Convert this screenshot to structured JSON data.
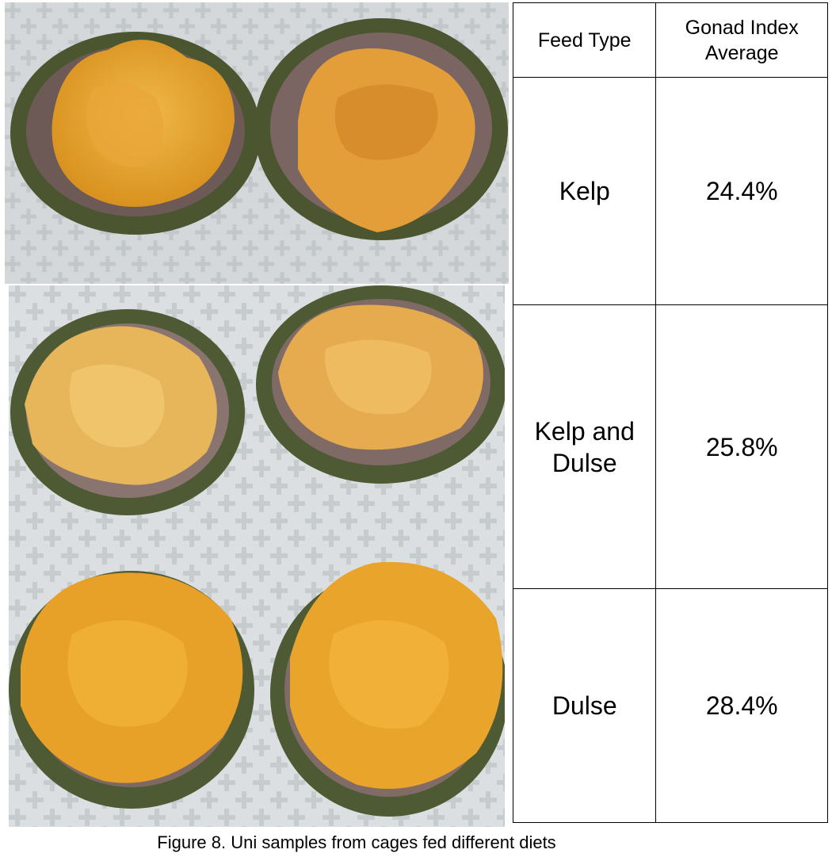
{
  "table": {
    "headers": {
      "feed_type": "Feed Type",
      "gonad_index": "Gonad Index Average"
    },
    "rows": [
      {
        "feed": "Kelp",
        "value": "24.4%"
      },
      {
        "feed": "Kelp and Dulse",
        "value": "25.8%"
      },
      {
        "feed": "Dulse",
        "value": "28.4%"
      }
    ]
  },
  "caption": "Figure 8. Uni samples from cages fed different diets",
  "colors": {
    "roe": "#e3a02a",
    "roe_highlight": "#f2c35a",
    "shell_inner": "#6e5a57",
    "spines": "#55613a",
    "tray": "#d6d9db"
  }
}
